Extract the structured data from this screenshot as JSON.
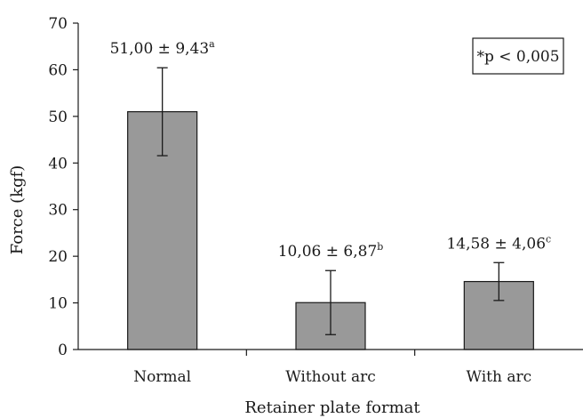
{
  "chart_data": {
    "type": "bar",
    "categories": [
      "Normal",
      "Without arc",
      "With arc"
    ],
    "values": [
      51.0,
      10.06,
      14.58
    ],
    "errors": [
      9.43,
      6.87,
      4.06
    ],
    "value_labels": [
      {
        "text": "51,00 ± 9,43",
        "sup": "a"
      },
      {
        "text": "10,06 ± 6,87",
        "sup": "b"
      },
      {
        "text": "14,58 ± 4,06",
        "sup": "c"
      }
    ],
    "title": "",
    "xlabel": "Retainer plate format",
    "ylabel": "Force (kgf)",
    "ylim": [
      0,
      70
    ],
    "yticks": [
      0,
      10,
      20,
      30,
      40,
      50,
      60,
      70
    ],
    "annotation": "*p < 0,005",
    "grid": false,
    "bar_color": "#999999",
    "bar_edge_color": "#1a1a1a"
  }
}
